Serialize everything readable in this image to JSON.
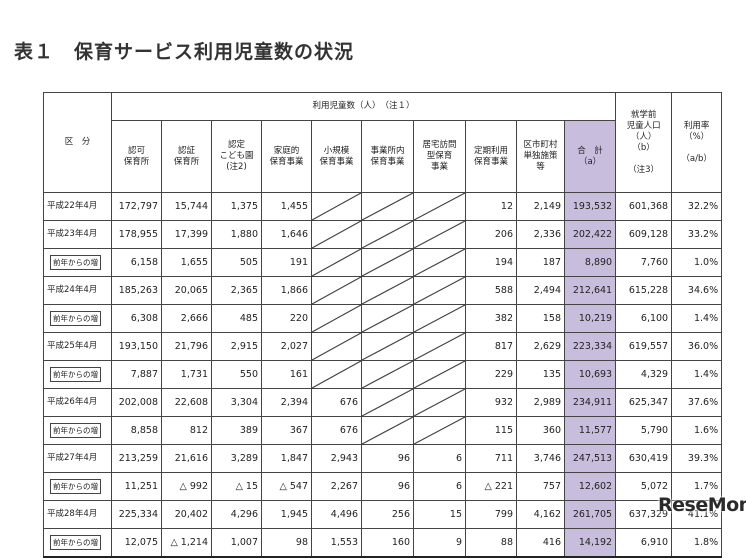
{
  "title": "表１　保育サービス利用児童数の状況",
  "header": {
    "kubun": "区　分",
    "group": "利用児童数（人）　（注１）",
    "columns": [
      "認可\n保育所",
      "認証\n保育所",
      "認定\nこども園\n(注2)",
      "家庭的\n保育事業",
      "小規模\n保育事業",
      "事業所内\n保育事業",
      "居宅訪問\n型保育\n事業",
      "定期利用\n保育事業",
      "区市町村\n単独施策\n等",
      "合　計\n（a）",
      "就学前\n児童人口\n（人）\n（b）\n\n（注3）",
      "利用率\n（%）\n\n（a/b）"
    ]
  },
  "rows": [
    {
      "label": "平成22年4月",
      "type": "main",
      "cells": [
        "172,797",
        "15,744",
        "1,375",
        "1,455",
        "/",
        "/",
        "/",
        "12",
        "2,149",
        "193,532",
        "601,368",
        "32.2%"
      ]
    },
    {
      "label": "平成23年4月",
      "type": "main",
      "cells": [
        "178,955",
        "17,399",
        "1,880",
        "1,646",
        "/",
        "/",
        "/",
        "206",
        "2,336",
        "202,422",
        "609,128",
        "33.2%"
      ]
    },
    {
      "label": "前年からの増",
      "type": "sub",
      "cells": [
        "6,158",
        "1,655",
        "505",
        "191",
        "/",
        "/",
        "/",
        "194",
        "187",
        "8,890",
        "7,760",
        "1.0%"
      ]
    },
    {
      "label": "平成24年4月",
      "type": "main",
      "cells": [
        "185,263",
        "20,065",
        "2,365",
        "1,866",
        "/",
        "/",
        "/",
        "588",
        "2,494",
        "212,641",
        "615,228",
        "34.6%"
      ]
    },
    {
      "label": "前年からの増",
      "type": "sub",
      "cells": [
        "6,308",
        "2,666",
        "485",
        "220",
        "/",
        "/",
        "/",
        "382",
        "158",
        "10,219",
        "6,100",
        "1.4%"
      ]
    },
    {
      "label": "平成25年4月",
      "type": "main",
      "cells": [
        "193,150",
        "21,796",
        "2,915",
        "2,027",
        "/",
        "/",
        "/",
        "817",
        "2,629",
        "223,334",
        "619,557",
        "36.0%"
      ]
    },
    {
      "label": "前年からの増",
      "type": "sub",
      "cells": [
        "7,887",
        "1,731",
        "550",
        "161",
        "/",
        "/",
        "/",
        "229",
        "135",
        "10,693",
        "4,329",
        "1.4%"
      ]
    },
    {
      "label": "平成26年4月",
      "type": "main",
      "cells": [
        "202,008",
        "22,608",
        "3,304",
        "2,394",
        "676",
        "/",
        "/",
        "932",
        "2,989",
        "234,911",
        "625,347",
        "37.6%"
      ]
    },
    {
      "label": "前年からの増",
      "type": "sub",
      "cells": [
        "8,858",
        "812",
        "389",
        "367",
        "676",
        "/",
        "/",
        "115",
        "360",
        "11,577",
        "5,790",
        "1.6%"
      ]
    },
    {
      "label": "平成27年4月",
      "type": "main",
      "cells": [
        "213,259",
        "21,616",
        "3,289",
        "1,847",
        "2,943",
        "96",
        "6",
        "711",
        "3,746",
        "247,513",
        "630,419",
        "39.3%"
      ]
    },
    {
      "label": "前年からの増",
      "type": "sub",
      "cells": [
        "11,251",
        "△ 992",
        "△ 15",
        "△ 547",
        "2,267",
        "96",
        "6",
        "△ 221",
        "757",
        "12,602",
        "5,072",
        "1.7%"
      ]
    },
    {
      "label": "平成28年4月",
      "type": "main",
      "cells": [
        "225,334",
        "20,402",
        "4,296",
        "1,945",
        "4,496",
        "256",
        "15",
        "799",
        "4,162",
        "261,705",
        "637,329",
        "41.1%"
      ]
    },
    {
      "label": "前年からの増",
      "type": "sub",
      "cells": [
        "12,075",
        "△ 1,214",
        "1,007",
        "98",
        "1,553",
        "160",
        "9",
        "88",
        "416",
        "14,192",
        "6,910",
        "1.8%"
      ]
    }
  ],
  "watermark": {
    "text": "ReseMom"
  },
  "colors": {
    "total_column": "#c9bddd",
    "logo_accent": "#e61e2b"
  }
}
